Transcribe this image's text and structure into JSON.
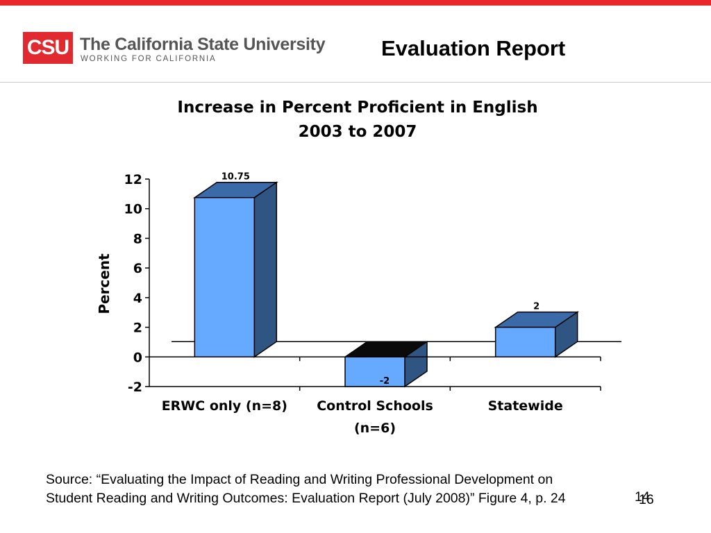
{
  "header": {
    "logo_mark": "CSU",
    "logo_name": "The California State University",
    "logo_tagline": "WORKING FOR CALIFORNIA",
    "title": "Evaluation Report"
  },
  "colors": {
    "top_bar": "#e8262b",
    "bar_front": "#66aaff",
    "bar_side": "#2f5583",
    "bar_top": "#3a6aa8",
    "neg_bar_top": "#0a0a0a"
  },
  "chart_data": {
    "type": "bar",
    "title": "Increase in Percent Proficient in English",
    "subtitle": "2003 to 2007",
    "ylabel": "Percent",
    "xlabel": "",
    "ylim": [
      -2,
      12
    ],
    "yticks": [
      "-2",
      "0",
      "2",
      "4",
      "6",
      "8",
      "10",
      "12"
    ],
    "categories": [
      [
        "ERWC only (n=8)"
      ],
      [
        "Control Schools",
        "(n=6)"
      ],
      [
        "Statewide"
      ]
    ],
    "values": [
      10.75,
      -2,
      2
    ],
    "data_labels": [
      "10.75",
      "-2",
      "2"
    ],
    "grid": false,
    "legend": "none"
  },
  "footer": {
    "source_line1": "Source: “Evaluating the Impact of Reading and Writing Professional Development on",
    "source_line2": "Student Reading and Writing Outcomes: Evaluation Report (July 2008)” Figure 4, p. 24",
    "page_number": "14",
    "page_number_overlay": "16"
  }
}
